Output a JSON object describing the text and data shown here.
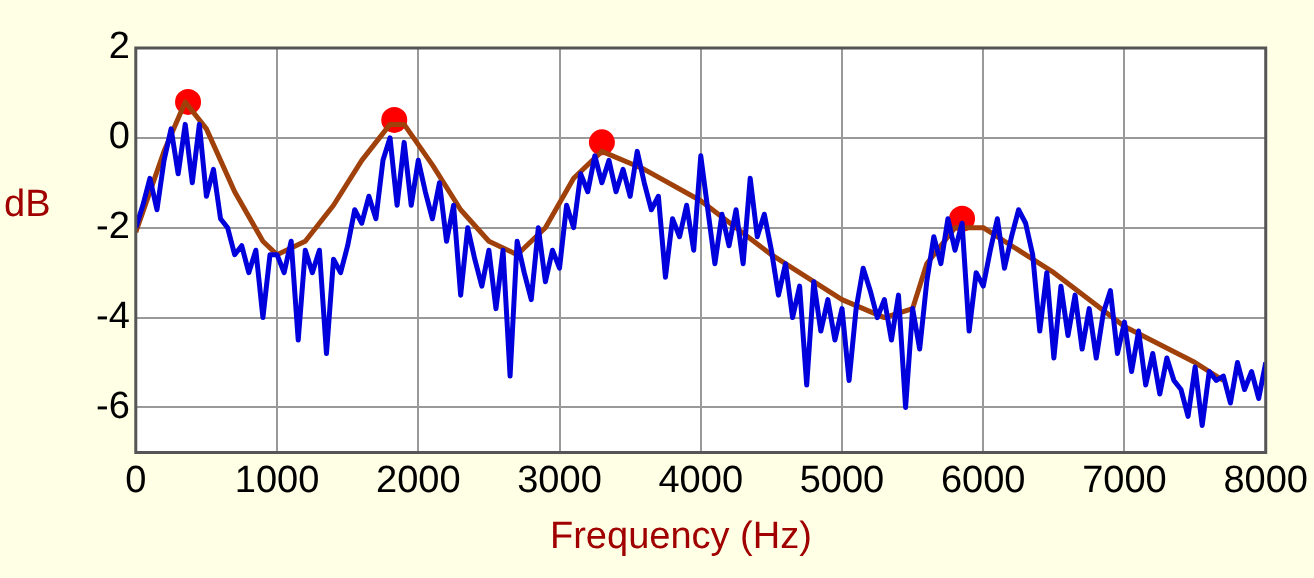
{
  "chart_data": {
    "type": "line",
    "xlabel": "Frequency (Hz)",
    "ylabel": "dB",
    "xlim": [
      0,
      8000
    ],
    "xticks": [
      0,
      1000,
      2000,
      3000,
      4000,
      5000,
      6000,
      7000,
      8000
    ],
    "ylim": [
      -7,
      2
    ],
    "yticks": [
      -6,
      -4,
      -2,
      0,
      2
    ],
    "grid": true,
    "legend": false,
    "series": [
      {
        "color": "#0000dd",
        "marker": "none",
        "x": [
          0,
          50,
          100,
          150,
          200,
          250,
          300,
          350,
          400,
          450,
          500,
          550,
          600,
          650,
          700,
          750,
          800,
          850,
          900,
          950,
          1000,
          1050,
          1100,
          1150,
          1200,
          1250,
          1300,
          1350,
          1400,
          1450,
          1500,
          1550,
          1600,
          1650,
          1700,
          1750,
          1800,
          1850,
          1900,
          1950,
          2000,
          2050,
          2100,
          2150,
          2200,
          2250,
          2300,
          2350,
          2400,
          2450,
          2500,
          2550,
          2600,
          2650,
          2700,
          2750,
          2800,
          2850,
          2900,
          2950,
          3000,
          3050,
          3100,
          3150,
          3200,
          3250,
          3300,
          3350,
          3400,
          3450,
          3500,
          3550,
          3600,
          3650,
          3700,
          3750,
          3800,
          3850,
          3900,
          3950,
          4000,
          4050,
          4100,
          4150,
          4200,
          4250,
          4300,
          4350,
          4400,
          4450,
          4500,
          4550,
          4600,
          4650,
          4700,
          4750,
          4800,
          4850,
          4900,
          4950,
          5000,
          5050,
          5100,
          5150,
          5200,
          5250,
          5300,
          5350,
          5400,
          5450,
          5500,
          5550,
          5600,
          5650,
          5700,
          5750,
          5800,
          5850,
          5900,
          5950,
          6000,
          6050,
          6100,
          6150,
          6200,
          6250,
          6300,
          6350,
          6400,
          6450,
          6500,
          6550,
          6600,
          6650,
          6700,
          6750,
          6800,
          6850,
          6900,
          6950,
          7000,
          7050,
          7100,
          7150,
          7200,
          7250,
          7300,
          7350,
          7400,
          7450,
          7500,
          7550,
          7600,
          7650,
          7700,
          7750,
          7800,
          7850,
          7900,
          7950,
          8000
        ],
        "values": [
          -2.0,
          -1.5,
          -0.9,
          -1.6,
          -0.5,
          0.2,
          -0.8,
          0.3,
          -1.0,
          0.3,
          -1.3,
          -0.7,
          -1.8,
          -2.0,
          -2.6,
          -2.4,
          -3.0,
          -2.5,
          -4.0,
          -2.6,
          -2.6,
          -3.0,
          -2.3,
          -4.5,
          -2.5,
          -3.0,
          -2.5,
          -4.8,
          -2.7,
          -3.0,
          -2.4,
          -1.6,
          -1.9,
          -1.3,
          -1.8,
          -0.5,
          0.0,
          -1.5,
          -0.1,
          -1.5,
          -0.5,
          -1.2,
          -1.8,
          -1.0,
          -2.3,
          -1.5,
          -3.5,
          -2.0,
          -2.7,
          -3.3,
          -2.5,
          -3.8,
          -2.5,
          -5.3,
          -2.3,
          -3.0,
          -3.6,
          -2.0,
          -3.2,
          -2.5,
          -2.9,
          -1.5,
          -2.0,
          -0.8,
          -1.2,
          -0.4,
          -1.0,
          -0.5,
          -1.2,
          -0.7,
          -1.3,
          -0.3,
          -1.0,
          -1.6,
          -1.3,
          -3.1,
          -1.8,
          -2.2,
          -1.5,
          -2.5,
          -0.4,
          -1.6,
          -2.8,
          -1.7,
          -2.4,
          -1.6,
          -2.8,
          -0.9,
          -2.2,
          -1.7,
          -2.5,
          -3.5,
          -2.8,
          -4.0,
          -3.3,
          -5.5,
          -3.2,
          -4.3,
          -3.6,
          -4.5,
          -3.8,
          -5.4,
          -3.8,
          -2.9,
          -3.4,
          -4.0,
          -3.6,
          -4.5,
          -3.5,
          -6.0,
          -3.8,
          -4.7,
          -3.2,
          -2.2,
          -2.8,
          -1.8,
          -2.5,
          -1.9,
          -4.3,
          -3.0,
          -3.3,
          -2.5,
          -1.8,
          -2.9,
          -2.2,
          -1.6,
          -1.9,
          -2.6,
          -4.3,
          -3.0,
          -4.9,
          -3.3,
          -4.4,
          -3.5,
          -4.7,
          -3.8,
          -4.9,
          -3.9,
          -3.4,
          -4.8,
          -4.1,
          -5.2,
          -4.3,
          -5.5,
          -4.8,
          -5.7,
          -4.9,
          -5.4,
          -5.6,
          -6.2,
          -5.1,
          -6.4,
          -5.2,
          -5.4,
          -5.3,
          -5.9,
          -5.0,
          -5.6,
          -5.2,
          -5.8,
          -5.0
        ]
      },
      {
        "color": "#a0400a",
        "marker": "none",
        "x": [
          0,
          200,
          350,
          500,
          700,
          900,
          1000,
          1200,
          1400,
          1600,
          1800,
          1900,
          2100,
          2300,
          2500,
          2700,
          2900,
          3100,
          3300,
          3600,
          4000,
          4500,
          5000,
          5300,
          5500,
          5600,
          5800,
          6000,
          6500,
          7000,
          7500,
          7700
        ],
        "values": [
          -2.1,
          -0.3,
          0.8,
          0.2,
          -1.2,
          -2.3,
          -2.6,
          -2.3,
          -1.5,
          -0.5,
          0.3,
          0.3,
          -0.6,
          -1.6,
          -2.3,
          -2.6,
          -2.0,
          -0.9,
          -0.3,
          -0.7,
          -1.4,
          -2.6,
          -3.6,
          -4.0,
          -3.8,
          -2.8,
          -2.0,
          -2.0,
          -3.0,
          -4.2,
          -5.0,
          -5.4
        ]
      },
      {
        "type": "scatter",
        "color": "#ff0000",
        "marker": "circle",
        "x": [
          370,
          1830,
          3300,
          5850
        ],
        "values": [
          0.8,
          0.4,
          -0.1,
          -1.8
        ]
      }
    ]
  }
}
